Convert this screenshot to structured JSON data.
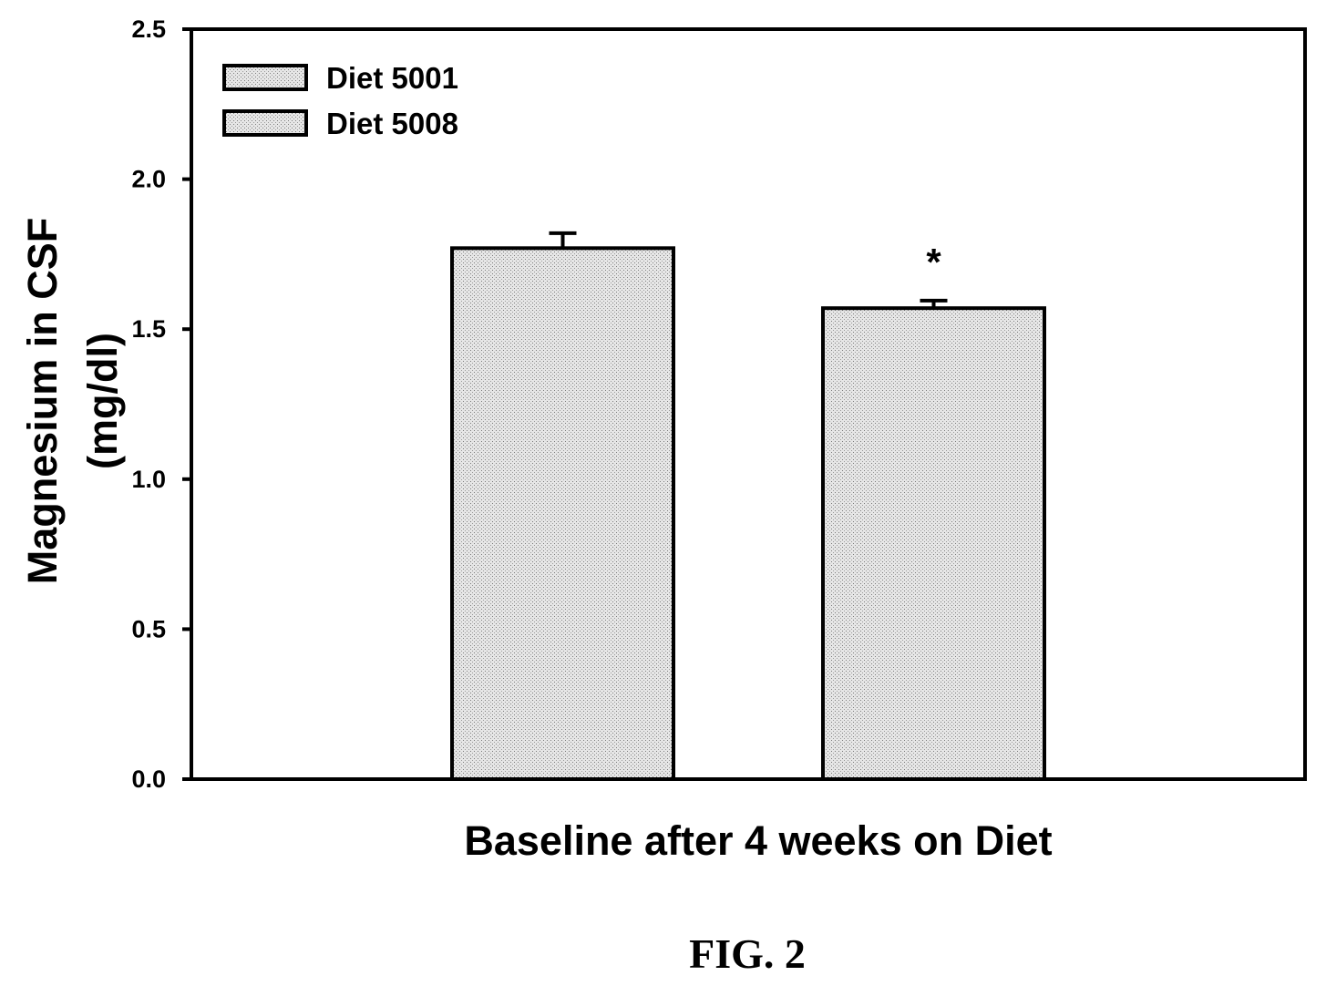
{
  "chart_data": {
    "type": "bar",
    "categories": [
      "Baseline after 4 weeks on Diet"
    ],
    "series": [
      {
        "name": "Diet 5001",
        "values": [
          1.77
        ],
        "error": [
          0.05
        ],
        "annotation": ""
      },
      {
        "name": "Diet 5008",
        "values": [
          1.57
        ],
        "error": [
          0.025
        ],
        "annotation": "*"
      }
    ],
    "title": "",
    "xlabel": "Baseline after 4 weeks on Diet",
    "ylabel_lines": [
      "Magnesium in CSF",
      "(mg/dl)"
    ],
    "ylim": [
      0,
      2.5
    ],
    "yticks": [
      "0.0",
      "0.5",
      "1.0",
      "1.5",
      "2.0",
      "2.5"
    ],
    "grid": false,
    "legend_position": "top-left",
    "bar_fill": "stippled light gray"
  },
  "caption": "FIG. 2"
}
